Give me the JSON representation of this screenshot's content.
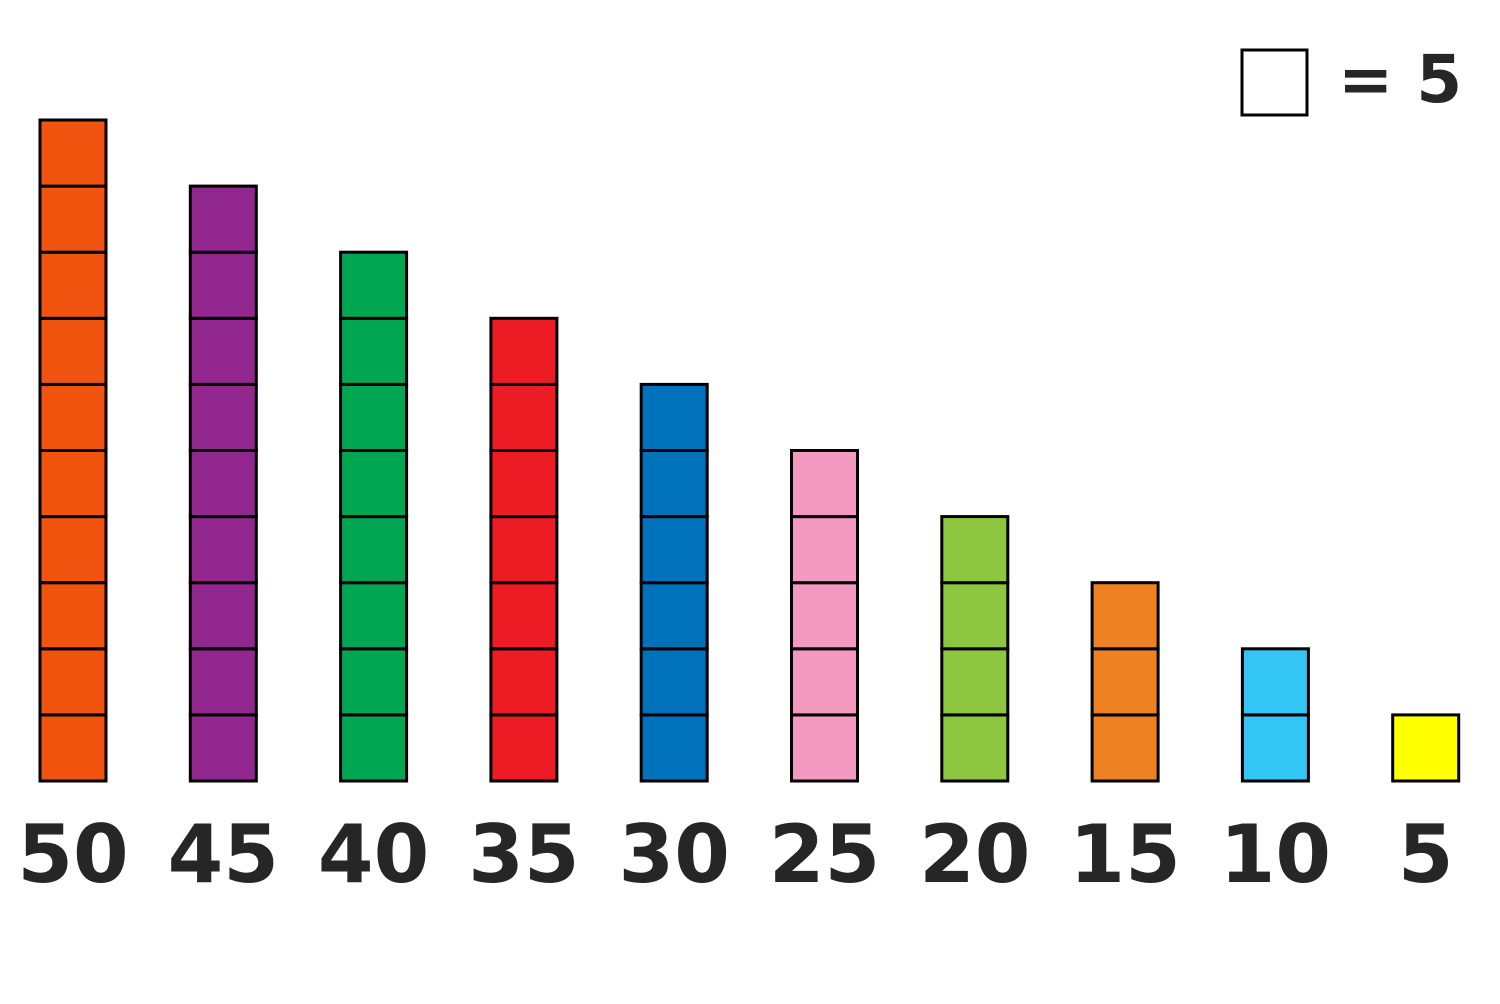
{
  "chart_data": {
    "type": "cubes",
    "unit": 5,
    "unit_label": "= 5",
    "values": [
      50,
      45,
      40,
      35,
      30,
      25,
      20,
      15,
      10,
      5
    ],
    "colors": [
      "#f0540f",
      "#92278f",
      "#00a651",
      "#ed1c24",
      "#0072bc",
      "#f49ac1",
      "#8dc63f",
      "#ee8122",
      "#33c5f3",
      "#ffff00"
    ]
  }
}
